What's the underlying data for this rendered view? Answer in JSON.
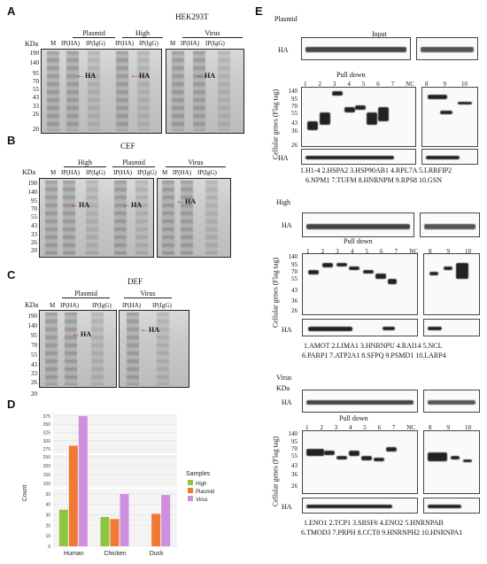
{
  "panelA": {
    "letter": "A",
    "cell": "HEK293T",
    "kda": "KDa",
    "groups": [
      "Plasmid",
      "High",
      "Virus"
    ],
    "lanes_p1": [
      "M",
      "IP(HA)",
      "IP(IgG)"
    ],
    "lanes_p2": [
      "IP(HA)",
      "IP(IgG)"
    ],
    "lanes_v": [
      "M",
      "IP(HA)",
      "IP(IgG)"
    ],
    "markers": [
      "190",
      "140",
      "95",
      "70",
      "55",
      "43",
      "33",
      "26",
      "20"
    ],
    "ha": "HA"
  },
  "panelB": {
    "letter": "B",
    "cell": "CEF",
    "kda": "KDa",
    "groups": [
      "High",
      "Plasmid",
      "Virus"
    ],
    "lanes_p1": [
      "M",
      "IP(HA)",
      "IP(IgG)"
    ],
    "lanes_p2": [
      "IP(HA)",
      "IP(IgG)"
    ],
    "lanes_v": [
      "M",
      "IP(HA)",
      "IP(IgG)"
    ],
    "markers": [
      "190",
      "140",
      "95",
      "70",
      "55",
      "43",
      "33",
      "26",
      "20"
    ],
    "ha": "HA"
  },
  "panelC": {
    "letter": "C",
    "cell": "DEF",
    "kda": "KDa",
    "groups": [
      "Plasmid",
      "Virus"
    ],
    "lanes": [
      "M",
      "IP(HA)",
      "IP(IgG)",
      "IP(HA)",
      "IP(IgG)"
    ],
    "markers": [
      "190",
      "140",
      "95",
      "70",
      "55",
      "43",
      "33",
      "26",
      "20"
    ],
    "ha": "HA"
  },
  "panelD": {
    "letter": "D"
  },
  "chart_data": {
    "type": "bar",
    "categories": [
      "Human",
      "Chicken",
      "Duck"
    ],
    "series": [
      {
        "name": "High",
        "values": [
          35,
          28,
          null
        ]
      },
      {
        "name": "Plasmid",
        "values": [
          285,
          26,
          31
        ]
      },
      {
        "name": "Virus",
        "values": [
          375,
          50,
          49
        ]
      }
    ],
    "ylabel": "Count",
    "legend_title": "Samples",
    "yticks_bottom": [
      "0",
      "10",
      "20",
      "30",
      "40",
      "50"
    ],
    "yticks_mid": [
      "100",
      "150",
      "200",
      "250"
    ],
    "yticks_top": [
      "275",
      "300",
      "325",
      "350",
      "375"
    ],
    "colors": {
      "High": "#8cc63f",
      "Plasmid": "#f07a33",
      "Virus": "#cf8fdf"
    },
    "legend_placement": "right"
  },
  "panelE": {
    "letter": "E",
    "sections": [
      {
        "title": "Plasmid",
        "input": "Input",
        "ha": "HA",
        "pulldown": "Pull down",
        "ylab": "Cellular genes (Flag tag)",
        "lanes_left": [
          "1",
          "2",
          "3",
          "4",
          "5",
          "6",
          "7",
          "NC"
        ],
        "lanes_right": [
          "8",
          "9",
          "10"
        ],
        "markers": [
          "140",
          "95",
          "70",
          "55",
          "43",
          "36",
          "26"
        ],
        "genes_line1": "1.H1-4 2.HSPA2 3.HSP90AB1 4.RPL7A 5.LRRFIP2",
        "genes_line2": "6.NPM1 7.TUFM 8.HNRNPM 9.RPS8 10.GSN"
      },
      {
        "title": "High",
        "ha": "HA",
        "pulldown": "Pull down",
        "ylab": "Cellular genes (Flag tag)",
        "lanes_left": [
          "1",
          "2",
          "3",
          "4",
          "5",
          "6",
          "7",
          "NC"
        ],
        "lanes_right": [
          "8",
          "9",
          "10"
        ],
        "markers": [
          "140",
          "95",
          "70",
          "55",
          "43",
          "36",
          "26"
        ],
        "genes_line1": "1.AMOT 2.LIMA1 3.HNRNPU 4.RAI14 5.NCL",
        "genes_line2": "6.PARP1 7.ATP2A1 8.SFPQ 9.PSMD1 10.LARP4"
      },
      {
        "title": "Virus",
        "kda": "KDa",
        "ha": "HA",
        "pulldown": "Pull down",
        "ylab": "Cellular genes (Flag tag)",
        "lanes_left": [
          "1",
          "2",
          "3",
          "4",
          "5",
          "6",
          "7",
          "NC"
        ],
        "lanes_right": [
          "8",
          "9",
          "10"
        ],
        "markers": [
          "140",
          "95",
          "70",
          "55",
          "43",
          "36",
          "26"
        ],
        "genes_line1": "1.ENO1 2.TCP1 3.SRSF6 4.ENO2 5.HNRNPAB",
        "genes_line2": "6.TMOD3 7.PRPH 8.CCT8 9.HNRNPH2 10.HNRNPA1"
      }
    ]
  }
}
